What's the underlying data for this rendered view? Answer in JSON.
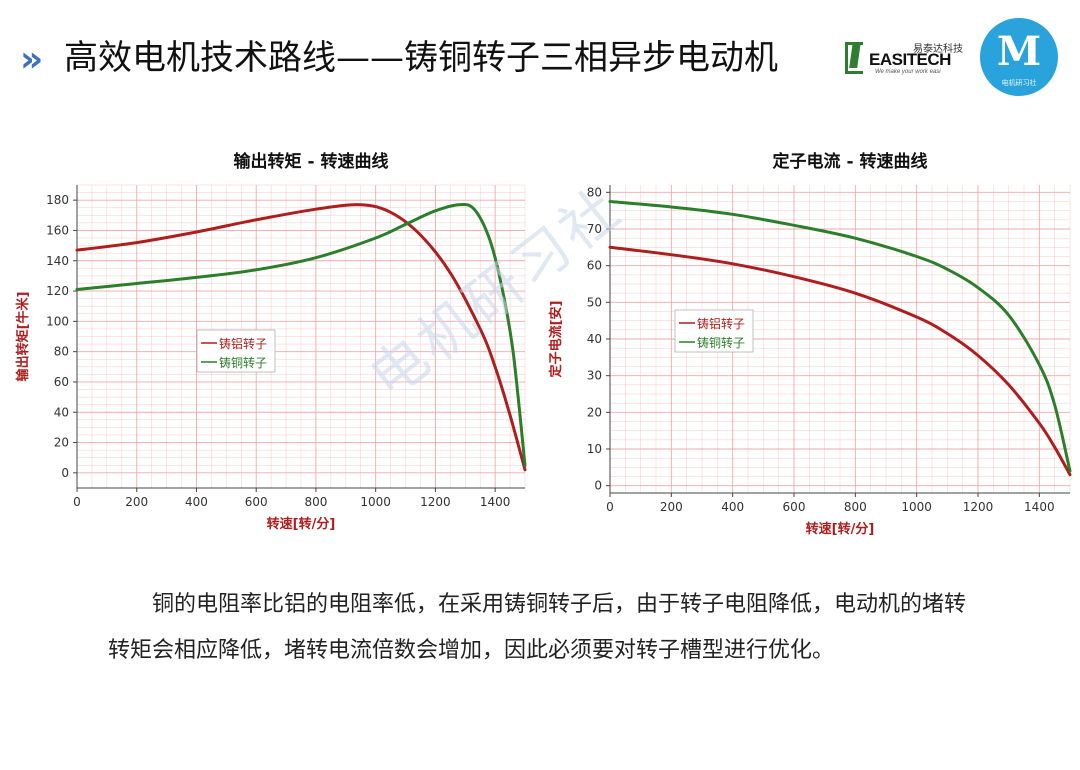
{
  "header": {
    "chevron": "»",
    "title": "高效电机技术路线——铸铜转子三相异步电动机"
  },
  "logos": {
    "easitech": {
      "name": "EASITECH",
      "cn": "易泰达科技",
      "tagline": "We make your work easi"
    },
    "club": {
      "letter": "M",
      "caption": "电机研习社"
    }
  },
  "watermark": "电机研习社",
  "colors": {
    "accent": "#3d6fc3",
    "aluminum": "#b01d1d",
    "copper": "#2a7f2a",
    "grid": "#f0a0a0"
  },
  "chart_data": [
    {
      "type": "line",
      "title": "输出转矩 - 转速曲线",
      "xlabel": "转速[转/分]",
      "ylabel": "输出转矩[牛米]",
      "xlim": [
        0,
        1500
      ],
      "ylim": [
        -10,
        190
      ],
      "xticks": [
        0,
        200,
        400,
        600,
        800,
        1000,
        1200,
        1400
      ],
      "yticks": [
        0,
        20,
        40,
        60,
        80,
        100,
        120,
        140,
        160,
        180
      ],
      "grid": true,
      "legend": "center-left",
      "series": [
        {
          "name": "铸铝转子",
          "color": "#b01d1d",
          "x": [
            0,
            200,
            400,
            600,
            800,
            950,
            1050,
            1150,
            1250,
            1350,
            1400,
            1450,
            1500
          ],
          "y": [
            147,
            152,
            159,
            167,
            174,
            177,
            172,
            157,
            132,
            95,
            70,
            38,
            2
          ]
        },
        {
          "name": "铸铜转子",
          "color": "#2a7f2a",
          "x": [
            0,
            200,
            400,
            600,
            800,
            1000,
            1100,
            1200,
            1280,
            1330,
            1380,
            1420,
            1460,
            1500
          ],
          "y": [
            121,
            125,
            129,
            134,
            142,
            155,
            164,
            173,
            177,
            174,
            155,
            125,
            80,
            5
          ]
        }
      ]
    },
    {
      "type": "line",
      "title": "定子电流 - 转速曲线",
      "xlabel": "转速[转/分]",
      "ylabel": "定子电流[安]",
      "xlim": [
        0,
        1500
      ],
      "ylim": [
        -2,
        82
      ],
      "xticks": [
        0,
        200,
        400,
        600,
        800,
        1000,
        1200,
        1400
      ],
      "yticks": [
        0,
        10,
        20,
        30,
        40,
        50,
        60,
        70,
        80
      ],
      "grid": true,
      "legend": "center-left",
      "series": [
        {
          "name": "铸铝转子",
          "color": "#b01d1d",
          "x": [
            0,
            200,
            400,
            600,
            800,
            1000,
            1100,
            1200,
            1300,
            1400,
            1450,
            1500
          ],
          "y": [
            65,
            63,
            60.5,
            57,
            52.5,
            46,
            41.5,
            35.5,
            27.5,
            17,
            10.5,
            3
          ]
        },
        {
          "name": "铸铜转子",
          "color": "#2a7f2a",
          "x": [
            0,
            200,
            400,
            600,
            800,
            1000,
            1100,
            1200,
            1300,
            1400,
            1450,
            1500
          ],
          "y": [
            77.5,
            76,
            74,
            71,
            67.5,
            62.5,
            59,
            54,
            46.5,
            33,
            22,
            4
          ]
        }
      ]
    }
  ],
  "body": {
    "paragraph": "铜的电阻率比铝的电阻率低，在采用铸铜转子后，由于转子电阻降低，电动机的堵转转矩会相应降低，堵转电流倍数会增加，因此必须要对转子槽型进行优化。"
  }
}
